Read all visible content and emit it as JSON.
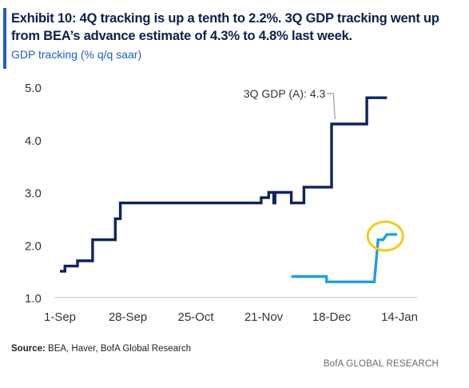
{
  "header": {
    "title": "Exhibit 10: 4Q tracking is up a tenth to 2.2%. 3Q GDP tracking went up from BEA’s advance estimate of 4.3% to 4.8% last week.",
    "subtitle": "GDP tracking (% q/q saar)"
  },
  "footer": {
    "source_label": "Source:",
    "source_text": "BEA, Haver, BofA Global Research",
    "brand": "BofA GLOBAL RESEARCH"
  },
  "colors": {
    "series_3q": "#0c2461",
    "series_4q": "#1ea0e6",
    "highlight": "#f2cc1a",
    "accent": "#1f5fc8"
  },
  "chart_data": {
    "type": "line",
    "title": "",
    "xlabel": "",
    "ylabel": "",
    "ylim": [
      1.0,
      5.0
    ],
    "y_ticks": [
      "1.0",
      "2.0",
      "3.0",
      "4.0",
      "5.0"
    ],
    "x_ticks": [
      {
        "label": "1-Sep",
        "day": 0
      },
      {
        "label": "28-Sep",
        "day": 27
      },
      {
        "label": "25-Oct",
        "day": 54
      },
      {
        "label": "21-Nov",
        "day": 81
      },
      {
        "label": "18-Dec",
        "day": 108
      },
      {
        "label": "14-Jan",
        "day": 135
      }
    ],
    "grid": false,
    "legend": "none",
    "annotations": [
      {
        "text": "3Q GDP (A): 4.3",
        "day": 110,
        "value": 4.3
      }
    ],
    "highlight": {
      "shape": "ellipse",
      "day": 130,
      "value": 2.2,
      "series": "4Q"
    },
    "series": [
      {
        "step": true,
        "points": [
          [
            0,
            1.5
          ],
          [
            2,
            1.5
          ],
          [
            2,
            1.6
          ],
          [
            7,
            1.6
          ],
          [
            7,
            1.7
          ],
          [
            13,
            1.7
          ],
          [
            13,
            2.1
          ],
          [
            22,
            2.1
          ],
          [
            22,
            2.5
          ],
          [
            24,
            2.5
          ],
          [
            24,
            2.8
          ],
          [
            80,
            2.8
          ],
          [
            80,
            2.9
          ],
          [
            83,
            2.9
          ],
          [
            83,
            3.0
          ],
          [
            85,
            3.0
          ],
          [
            85,
            2.8
          ],
          [
            85.5,
            2.8
          ],
          [
            85.5,
            3.0
          ],
          [
            92,
            3.0
          ],
          [
            92,
            2.8
          ],
          [
            97,
            2.8
          ],
          [
            97,
            3.1
          ],
          [
            108,
            3.1
          ],
          [
            108,
            4.3
          ],
          [
            122,
            4.3
          ],
          [
            122,
            4.8
          ],
          [
            130,
            4.8
          ]
        ]
      },
      {
        "step": true,
        "points": [
          [
            92,
            1.4
          ],
          [
            106,
            1.4
          ],
          [
            106,
            1.3
          ],
          [
            125,
            1.3
          ],
          [
            126.5,
            2.1
          ],
          [
            128.5,
            2.1
          ],
          [
            130,
            2.2
          ],
          [
            134,
            2.2
          ]
        ]
      }
    ]
  }
}
